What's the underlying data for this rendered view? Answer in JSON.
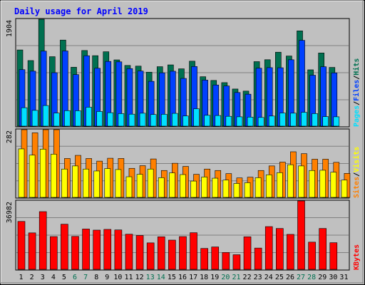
{
  "colors": {
    "background": "#c0c0c0",
    "plot_bg": "#c0c0c0",
    "grid": "#808080",
    "title": "#0000ff",
    "hits": "#007050",
    "files": "#0040ff",
    "pages": "#00e0ff",
    "visits": "#ff8000",
    "sites": "#ffff00",
    "kbytes": "#ff0000",
    "weekend_label": "#007050",
    "weekday_label": "#000000"
  },
  "chart_data": [
    {
      "type": "bar",
      "title": "Daily usage for April 2019",
      "ymax_label": "1904",
      "ylim": [
        0,
        1904
      ],
      "legend_right": [
        "Pages",
        "/",
        "Files",
        "/",
        "Hits"
      ],
      "categories": [
        "1",
        "2",
        "3",
        "4",
        "5",
        "6",
        "7",
        "8",
        "9",
        "10",
        "11",
        "12",
        "13",
        "14",
        "15",
        "16",
        "17",
        "18",
        "19",
        "20",
        "21",
        "22",
        "23",
        "24",
        "25",
        "26",
        "27",
        "28",
        "29",
        "30",
        "31"
      ],
      "weekend_days": [
        6,
        7,
        13,
        14,
        20,
        21,
        27,
        28
      ],
      "series": [
        {
          "name": "Hits",
          "values": [
            1357,
            1168,
            1904,
            1237,
            1533,
            1049,
            1347,
            1255,
            1325,
            1180,
            1081,
            1069,
            961,
            1059,
            1091,
            1021,
            1157,
            880,
            814,
            775,
            661,
            624,
            1149,
            1183,
            1317,
            1249,
            1697,
            1003,
            1303,
            1046,
            0
          ]
        },
        {
          "name": "Files",
          "values": [
            1006,
            979,
            1336,
            952,
            1339,
            918,
            1254,
            1031,
            1153,
            1145,
            1025,
            981,
            798,
            950,
            978,
            850,
            1062,
            820,
            733,
            716,
            599,
            569,
            1032,
            1042,
            1040,
            1182,
            1528,
            907,
            1058,
            949,
            0
          ]
        },
        {
          "name": "Pages",
          "values": [
            328,
            281,
            367,
            233,
            276,
            274,
            337,
            261,
            239,
            223,
            213,
            230,
            207,
            211,
            227,
            181,
            309,
            193,
            189,
            175,
            166,
            161,
            155,
            180,
            234,
            231,
            246,
            223,
            170,
            166,
            0
          ]
        }
      ]
    },
    {
      "type": "bar",
      "ymax_label": "282",
      "ylim": [
        0,
        282
      ],
      "legend_right": [
        "Sites",
        "/",
        "Visits"
      ],
      "categories": [
        "1",
        "2",
        "3",
        "4",
        "5",
        "6",
        "7",
        "8",
        "9",
        "10",
        "11",
        "12",
        "13",
        "14",
        "15",
        "16",
        "17",
        "18",
        "19",
        "20",
        "21",
        "22",
        "23",
        "24",
        "25",
        "26",
        "27",
        "28",
        "29",
        "30",
        "31"
      ],
      "series": [
        {
          "name": "Visits",
          "values": [
            282,
            269,
            282,
            282,
            162,
            175,
            162,
            151,
            163,
            162,
            121,
            132,
            160,
            112,
            142,
            129,
            96,
            118,
            112,
            99,
            81,
            84,
            112,
            131,
            147,
            190,
            182,
            159,
            159,
            146,
            100
          ]
        },
        {
          "name": "Sites",
          "values": [
            202,
            176,
            201,
            180,
            118,
            131,
            118,
            110,
            120,
            116,
            86,
            96,
            118,
            82,
            102,
            95,
            68,
            85,
            80,
            72,
            58,
            61,
            82,
            94,
            103,
            136,
            131,
            112,
            113,
            105,
            72
          ]
        }
      ]
    },
    {
      "type": "bar",
      "ymax_label": "36982",
      "ylim": [
        0,
        36982
      ],
      "legend_right": [
        "KBytes"
      ],
      "categories": [
        "1",
        "2",
        "3",
        "4",
        "5",
        "6",
        "7",
        "8",
        "9",
        "10",
        "11",
        "12",
        "13",
        "14",
        "15",
        "16",
        "17",
        "18",
        "19",
        "20",
        "21",
        "22",
        "23",
        "24",
        "25",
        "26",
        "27",
        "28",
        "29",
        "30",
        "31"
      ],
      "series": [
        {
          "name": "KBytes",
          "values": [
            25900,
            19700,
            31200,
            17700,
            24400,
            17800,
            21800,
            21200,
            21600,
            21300,
            19000,
            18300,
            14300,
            17600,
            15800,
            17700,
            19800,
            11300,
            12100,
            9100,
            7900,
            17600,
            11500,
            23100,
            22100,
            18900,
            36982,
            14700,
            22100,
            14400,
            0
          ]
        }
      ]
    }
  ]
}
